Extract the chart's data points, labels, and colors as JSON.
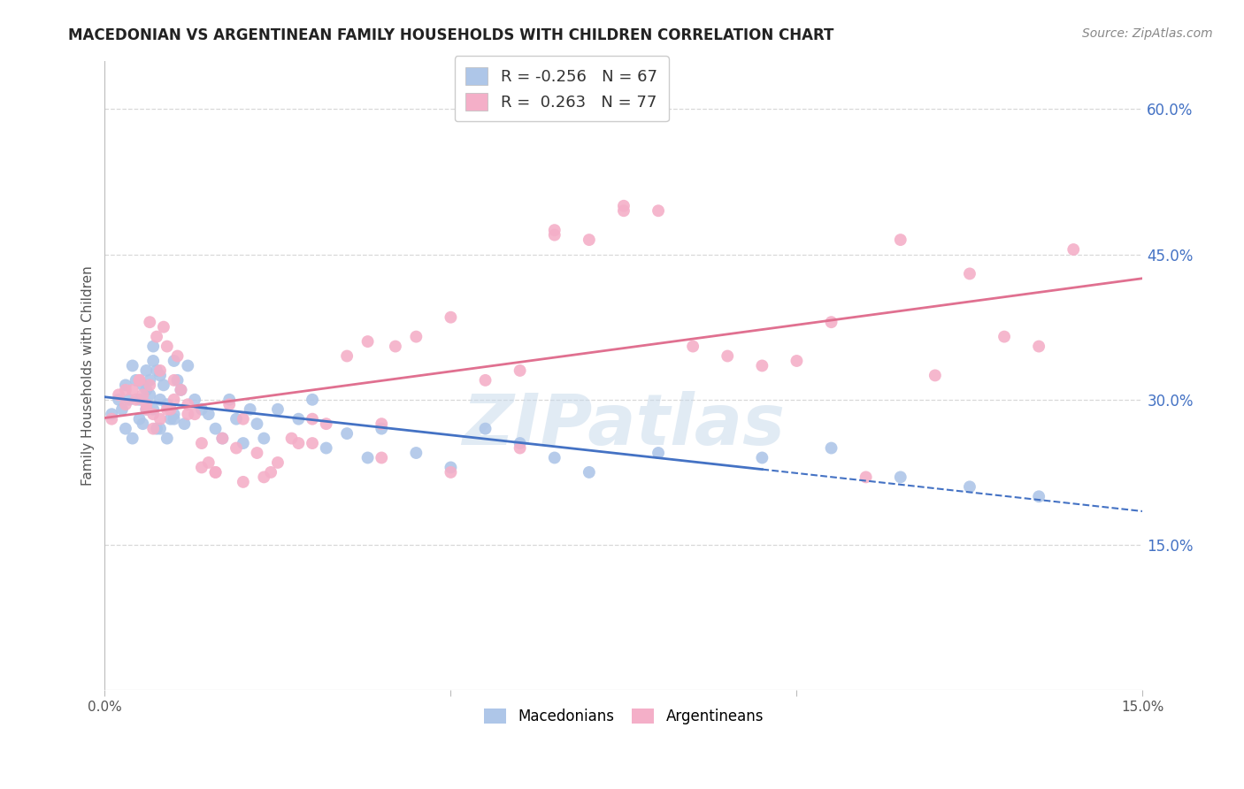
{
  "title": "MACEDONIAN VS ARGENTINEAN FAMILY HOUSEHOLDS WITH CHILDREN CORRELATION CHART",
  "source": "Source: ZipAtlas.com",
  "ylabel": "Family Households with Children",
  "xlim": [
    0.0,
    15.0
  ],
  "ylim": [
    0.0,
    65.0
  ],
  "yticks": [
    15.0,
    30.0,
    45.0,
    60.0
  ],
  "xticks": [
    0.0,
    5.0,
    10.0,
    15.0
  ],
  "xtick_labels": [
    "0.0%",
    "",
    "",
    "15.0%"
  ],
  "background_color": "#ffffff",
  "grid_color": "#d8d8d8",
  "legend_r_mac": "-0.256",
  "legend_n_mac": "67",
  "legend_r_arg": "0.263",
  "legend_n_arg": "77",
  "mac_color": "#aec6e8",
  "arg_color": "#f4afc8",
  "mac_line_color": "#4472c4",
  "arg_line_color": "#e07090",
  "mac_line_solid_end": 9.5,
  "watermark_text": "ZIPatlas",
  "mac_x": [
    0.1,
    0.2,
    0.25,
    0.3,
    0.35,
    0.4,
    0.45,
    0.5,
    0.5,
    0.55,
    0.55,
    0.6,
    0.6,
    0.65,
    0.65,
    0.7,
    0.7,
    0.75,
    0.75,
    0.8,
    0.8,
    0.85,
    0.9,
    0.95,
    1.0,
    1.0,
    1.05,
    1.1,
    1.15,
    1.2,
    1.3,
    1.4,
    1.5,
    1.6,
    1.7,
    1.8,
    1.9,
    2.0,
    2.1,
    2.2,
    2.3,
    2.5,
    2.8,
    3.0,
    3.2,
    3.5,
    3.8,
    4.0,
    4.5,
    5.0,
    5.5,
    6.0,
    6.5,
    7.0,
    8.0,
    9.5,
    10.5,
    11.5,
    12.5,
    13.5,
    0.3,
    0.4,
    0.6,
    0.7,
    0.8,
    0.9,
    1.0
  ],
  "mac_y": [
    28.5,
    30.0,
    29.0,
    31.5,
    30.0,
    33.5,
    32.0,
    30.0,
    28.0,
    31.5,
    27.5,
    33.0,
    29.0,
    32.0,
    30.5,
    35.5,
    29.0,
    33.0,
    27.0,
    32.5,
    30.0,
    31.5,
    29.5,
    28.0,
    34.0,
    28.5,
    32.0,
    31.0,
    27.5,
    33.5,
    30.0,
    29.0,
    28.5,
    27.0,
    26.0,
    30.0,
    28.0,
    25.5,
    29.0,
    27.5,
    26.0,
    29.0,
    28.0,
    30.0,
    25.0,
    26.5,
    24.0,
    27.0,
    24.5,
    23.0,
    27.0,
    25.5,
    24.0,
    22.5,
    24.5,
    24.0,
    25.0,
    22.0,
    21.0,
    20.0,
    27.0,
    26.0,
    31.0,
    34.0,
    27.0,
    26.0,
    28.0
  ],
  "arg_x": [
    0.1,
    0.2,
    0.3,
    0.4,
    0.45,
    0.5,
    0.55,
    0.6,
    0.65,
    0.65,
    0.7,
    0.75,
    0.8,
    0.85,
    0.9,
    0.95,
    1.0,
    1.05,
    1.1,
    1.2,
    1.3,
    1.4,
    1.5,
    1.6,
    1.7,
    1.8,
    1.9,
    2.0,
    2.2,
    2.3,
    2.5,
    2.7,
    2.8,
    3.0,
    3.2,
    3.5,
    3.8,
    4.0,
    4.2,
    4.5,
    5.0,
    5.5,
    6.0,
    6.5,
    6.5,
    7.0,
    7.5,
    7.5,
    8.0,
    8.5,
    9.0,
    9.5,
    10.0,
    10.5,
    11.0,
    11.5,
    12.0,
    12.5,
    13.0,
    13.5,
    14.0,
    0.3,
    0.5,
    0.6,
    0.7,
    0.8,
    0.9,
    1.0,
    1.2,
    1.4,
    1.6,
    2.0,
    2.4,
    3.0,
    4.0,
    5.0,
    6.0
  ],
  "arg_y": [
    28.0,
    30.5,
    29.5,
    31.0,
    30.0,
    32.0,
    30.5,
    29.0,
    31.5,
    38.0,
    28.5,
    36.5,
    33.0,
    37.5,
    35.5,
    29.0,
    32.0,
    34.5,
    31.0,
    29.5,
    28.5,
    25.5,
    23.5,
    22.5,
    26.0,
    29.5,
    25.0,
    28.0,
    24.5,
    22.0,
    23.5,
    26.0,
    25.5,
    28.0,
    27.5,
    34.5,
    36.0,
    27.5,
    35.5,
    36.5,
    38.5,
    32.0,
    33.0,
    47.0,
    47.5,
    46.5,
    50.0,
    49.5,
    49.5,
    35.5,
    34.5,
    33.5,
    34.0,
    38.0,
    22.0,
    46.5,
    32.5,
    43.0,
    36.5,
    35.5,
    45.5,
    31.0,
    32.0,
    29.5,
    27.0,
    28.0,
    29.0,
    30.0,
    28.5,
    23.0,
    22.5,
    21.5,
    22.5,
    25.5,
    24.0,
    22.5,
    25.0
  ]
}
